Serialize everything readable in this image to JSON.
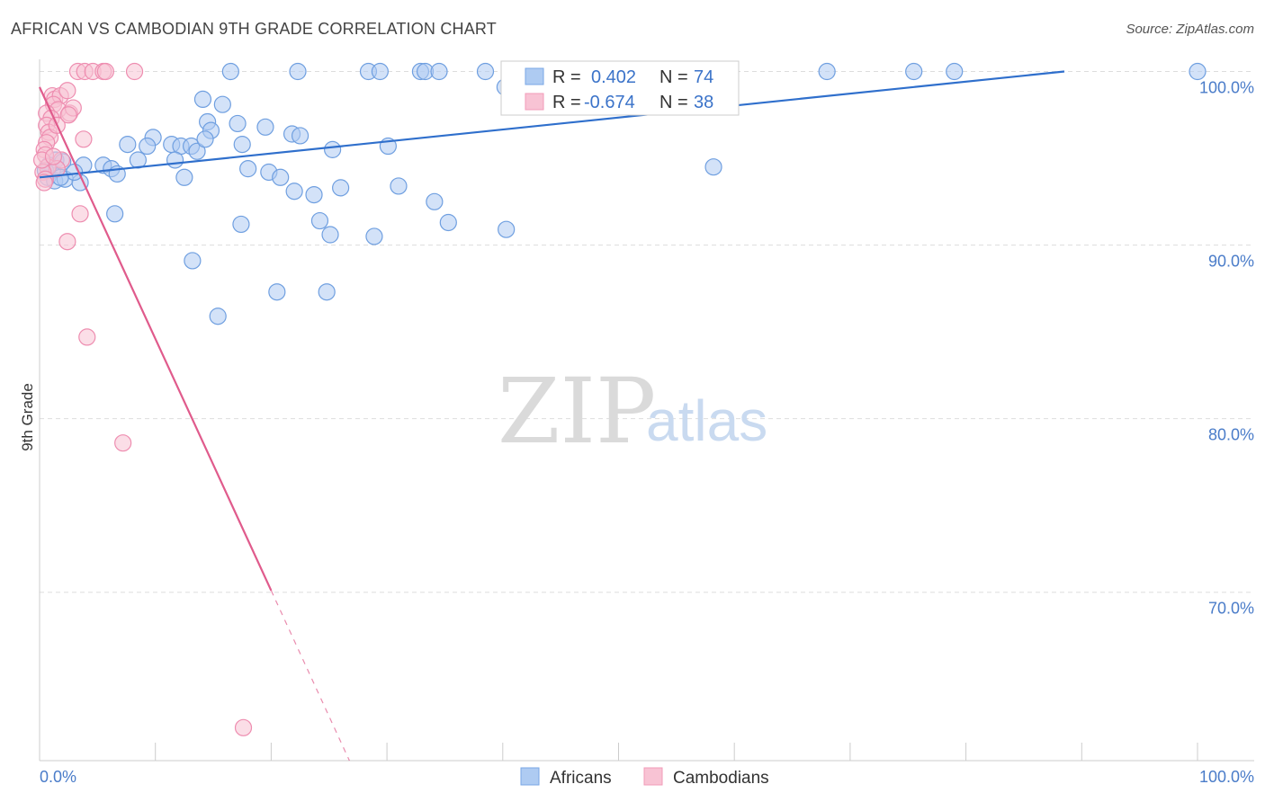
{
  "header": {
    "title": "AFRICAN VS CAMBODIAN 9TH GRADE CORRELATION CHART",
    "source": "Source: ZipAtlas.com"
  },
  "watermark": {
    "zip": "ZIP",
    "atlas": "atlas"
  },
  "legend": {
    "r_label": "R =",
    "n_label": "N =",
    "rows": [
      {
        "series": "Africans",
        "r": "0.402",
        "n": "74",
        "color": "#7aa7e6"
      },
      {
        "series": "Cambodians",
        "r": "-0.674",
        "n": "38",
        "color": "#f29bb8"
      }
    ]
  },
  "bottom_legend": [
    "Africans",
    "Cambodians"
  ],
  "colors": {
    "africans_fill": "#aecbf2",
    "africans_stroke": "#6f9fe0",
    "africans_line": "#2f6fcc",
    "cambodians_fill": "#f8c3d4",
    "cambodians_stroke": "#ee8db0",
    "cambodians_line": "#e05b8c",
    "tick_text": "#4a7cc9",
    "grid": "#dddddd"
  },
  "chart_data": {
    "type": "scatter",
    "title": "AFRICAN VS CAMBODIAN 9TH GRADE CORRELATION CHART",
    "xlabel": "",
    "ylabel": "9th Grade",
    "xlim": [
      0,
      100
    ],
    "ylim": [
      60.3,
      100.7
    ],
    "x_tick_labels": [
      "0.0%",
      "100.0%"
    ],
    "y_ticks": [
      100,
      90,
      80,
      70
    ],
    "y_tick_labels": [
      "100.0%",
      "90.0%",
      "80.0%",
      "70.0%"
    ],
    "grid": true,
    "legend_position": "top-center",
    "series": [
      {
        "name": "Africans",
        "r": 0.402,
        "n": 74,
        "trend": {
          "x": [
            0,
            88.5
          ],
          "y": [
            93.9,
            100.0
          ]
        },
        "points": [
          [
            16.5,
            100
          ],
          [
            22.3,
            100
          ],
          [
            28.4,
            100
          ],
          [
            29.4,
            100
          ],
          [
            32.9,
            100
          ],
          [
            33.3,
            100
          ],
          [
            34.5,
            100
          ],
          [
            38.5,
            100.0
          ],
          [
            54.0,
            100
          ],
          [
            68.0,
            100
          ],
          [
            75.5,
            100
          ],
          [
            79.0,
            100
          ],
          [
            100,
            100
          ],
          [
            41.5,
            99.4
          ],
          [
            42.2,
            99.4
          ],
          [
            43.6,
            99.1
          ],
          [
            40.2,
            99.1
          ],
          [
            14.1,
            98.4
          ],
          [
            15.8,
            98.1
          ],
          [
            14.5,
            97.1
          ],
          [
            17.1,
            97.0
          ],
          [
            9.8,
            96.2
          ],
          [
            14.8,
            96.6
          ],
          [
            19.5,
            96.8
          ],
          [
            21.8,
            96.4
          ],
          [
            22.5,
            96.3
          ],
          [
            7.6,
            95.8
          ],
          [
            9.3,
            95.7
          ],
          [
            11.4,
            95.8
          ],
          [
            12.2,
            95.7
          ],
          [
            13.1,
            95.7
          ],
          [
            13.6,
            95.4
          ],
          [
            17.5,
            95.8
          ],
          [
            25.3,
            95.5
          ],
          [
            30.1,
            95.7
          ],
          [
            14.3,
            96.1
          ],
          [
            3.8,
            94.6
          ],
          [
            5.5,
            94.6
          ],
          [
            6.2,
            94.4
          ],
          [
            8.5,
            94.9
          ],
          [
            11.7,
            94.9
          ],
          [
            19.8,
            94.2
          ],
          [
            18.0,
            94.4
          ],
          [
            58.2,
            94.5
          ],
          [
            1.1,
            94.3
          ],
          [
            0.7,
            93.9
          ],
          [
            1.3,
            93.7
          ],
          [
            2.2,
            93.8
          ],
          [
            3.5,
            93.6
          ],
          [
            6.7,
            94.1
          ],
          [
            12.5,
            93.9
          ],
          [
            20.8,
            93.9
          ],
          [
            22.0,
            93.1
          ],
          [
            23.7,
            92.9
          ],
          [
            26.0,
            93.3
          ],
          [
            31.0,
            93.4
          ],
          [
            34.1,
            92.5
          ],
          [
            6.5,
            91.8
          ],
          [
            17.4,
            91.2
          ],
          [
            24.2,
            91.4
          ],
          [
            25.1,
            90.6
          ],
          [
            28.9,
            90.5
          ],
          [
            35.3,
            91.3
          ],
          [
            40.3,
            90.9
          ],
          [
            13.2,
            89.1
          ],
          [
            20.5,
            87.3
          ],
          [
            24.8,
            87.3
          ],
          [
            15.4,
            85.9
          ],
          [
            1.4,
            94.9
          ],
          [
            0.8,
            94.6
          ],
          [
            2.0,
            94.8
          ],
          [
            0.5,
            94.3
          ],
          [
            3.0,
            94.2
          ],
          [
            1.8,
            93.9
          ]
        ]
      },
      {
        "name": "Cambodians",
        "r": -0.674,
        "n": 38,
        "trend": {
          "x": [
            0,
            20.0
          ],
          "y": [
            99.1,
            70.1
          ]
        },
        "points": [
          [
            3.3,
            100
          ],
          [
            3.9,
            100
          ],
          [
            4.6,
            100
          ],
          [
            5.5,
            100
          ],
          [
            5.7,
            100
          ],
          [
            8.2,
            100
          ],
          [
            1.1,
            98.6
          ],
          [
            1.3,
            98.4
          ],
          [
            1.8,
            98.6
          ],
          [
            2.4,
            98.9
          ],
          [
            1.2,
            98.1
          ],
          [
            1.6,
            97.8
          ],
          [
            2.6,
            97.6
          ],
          [
            2.9,
            97.9
          ],
          [
            0.6,
            97.6
          ],
          [
            1.0,
            97.3
          ],
          [
            0.6,
            96.9
          ],
          [
            0.8,
            96.5
          ],
          [
            0.9,
            96.2
          ],
          [
            0.6,
            95.9
          ],
          [
            0.4,
            95.5
          ],
          [
            1.5,
            96.9
          ],
          [
            3.8,
            96.1
          ],
          [
            0.5,
            95.2
          ],
          [
            1.9,
            94.9
          ],
          [
            0.7,
            94.5
          ],
          [
            1.5,
            94.4
          ],
          [
            0.3,
            94.2
          ],
          [
            0.5,
            93.8
          ],
          [
            0.4,
            93.6
          ],
          [
            0.2,
            94.9
          ],
          [
            2.5,
            97.5
          ],
          [
            3.5,
            91.8
          ],
          [
            2.4,
            90.2
          ],
          [
            4.1,
            84.7
          ],
          [
            7.2,
            78.6
          ],
          [
            17.6,
            62.2
          ],
          [
            1.2,
            95.1
          ]
        ]
      }
    ]
  }
}
